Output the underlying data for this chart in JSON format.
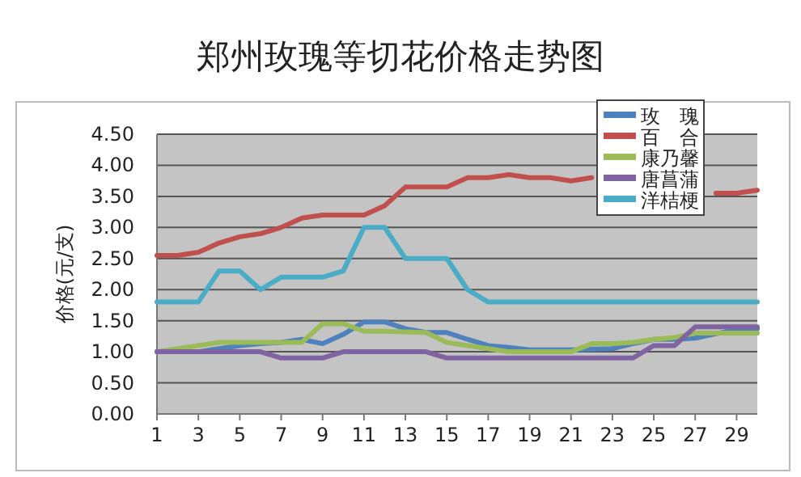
{
  "chart_data": {
    "type": "line",
    "title": "郑州玫瑰等切花价格走势图",
    "ylabel": "价格(元/支)",
    "x": [
      1,
      2,
      3,
      4,
      5,
      6,
      7,
      8,
      9,
      10,
      11,
      12,
      13,
      14,
      15,
      16,
      17,
      18,
      19,
      20,
      21,
      22,
      23,
      24,
      25,
      26,
      27,
      28,
      29,
      30
    ],
    "xlim": [
      1,
      30
    ],
    "xticks": [
      1,
      3,
      5,
      7,
      9,
      11,
      13,
      15,
      17,
      19,
      21,
      23,
      25,
      27,
      29
    ],
    "ylim": [
      0,
      4.5
    ],
    "yticks": [
      {
        "value": 0,
        "label": "0.00"
      },
      {
        "value": 0.5,
        "label": "0.50"
      },
      {
        "value": 1,
        "label": "1.00"
      },
      {
        "value": 1.5,
        "label": "1.50"
      },
      {
        "value": 2,
        "label": "2.00"
      },
      {
        "value": 2.5,
        "label": "2.50"
      },
      {
        "value": 3,
        "label": "3.00"
      },
      {
        "value": 3.5,
        "label": "3.50"
      },
      {
        "value": 4,
        "label": "4.00"
      },
      {
        "value": 4.5,
        "label": "4.50"
      }
    ],
    "grid": "y",
    "legend": "top right",
    "marker": "none",
    "line_style": "solid",
    "series": [
      {
        "name": "玫瑰",
        "color": "#4f81bd",
        "values": [
          1.0,
          1.0,
          1.0,
          1.05,
          1.1,
          1.13,
          1.15,
          1.2,
          1.13,
          1.28,
          1.48,
          1.48,
          1.37,
          1.31,
          1.31,
          1.2,
          1.1,
          1.07,
          1.03,
          1.03,
          1.03,
          1.04,
          1.05,
          1.13,
          1.2,
          1.2,
          1.22,
          1.29,
          1.36,
          1.37
        ]
      },
      {
        "name": "百合",
        "color": "#c0504d",
        "values": [
          2.55,
          2.55,
          2.6,
          2.75,
          2.85,
          2.9,
          3.0,
          3.15,
          3.2,
          3.2,
          3.2,
          3.35,
          3.65,
          3.65,
          3.65,
          3.8,
          3.8,
          3.85,
          3.8,
          3.8,
          3.75,
          3.8,
          null,
          null,
          null,
          null,
          null,
          3.55,
          3.55,
          3.6
        ]
      },
      {
        "name": "康乃馨",
        "color": "#9bbb59",
        "values": [
          1.0,
          1.05,
          1.1,
          1.15,
          1.15,
          1.15,
          1.15,
          1.15,
          1.45,
          1.45,
          1.33,
          1.33,
          1.32,
          1.31,
          1.15,
          1.1,
          1.05,
          1.0,
          1.0,
          1.0,
          1.0,
          1.13,
          1.13,
          1.15,
          1.2,
          1.23,
          1.3,
          1.3,
          1.3,
          1.3
        ]
      },
      {
        "name": "唐菖蒲",
        "color": "#8064a2",
        "values": [
          1.0,
          1.0,
          1.0,
          1.0,
          1.0,
          1.0,
          0.9,
          0.9,
          0.9,
          1.0,
          1.0,
          1.0,
          1.0,
          1.0,
          0.9,
          0.9,
          0.9,
          0.9,
          0.9,
          0.9,
          0.9,
          0.9,
          0.9,
          0.9,
          1.1,
          1.1,
          1.4,
          1.4,
          1.4,
          1.4
        ]
      },
      {
        "name": "洋桔梗",
        "color": "#4bacc6",
        "values": [
          1.8,
          1.8,
          1.8,
          2.3,
          2.3,
          2.0,
          2.2,
          2.2,
          2.2,
          2.3,
          3.0,
          3.0,
          2.5,
          2.5,
          2.5,
          2.0,
          1.8,
          1.8,
          1.8,
          1.8,
          1.8,
          1.8,
          1.8,
          1.8,
          1.8,
          1.8,
          1.8,
          1.8,
          1.8,
          1.8
        ]
      }
    ]
  }
}
